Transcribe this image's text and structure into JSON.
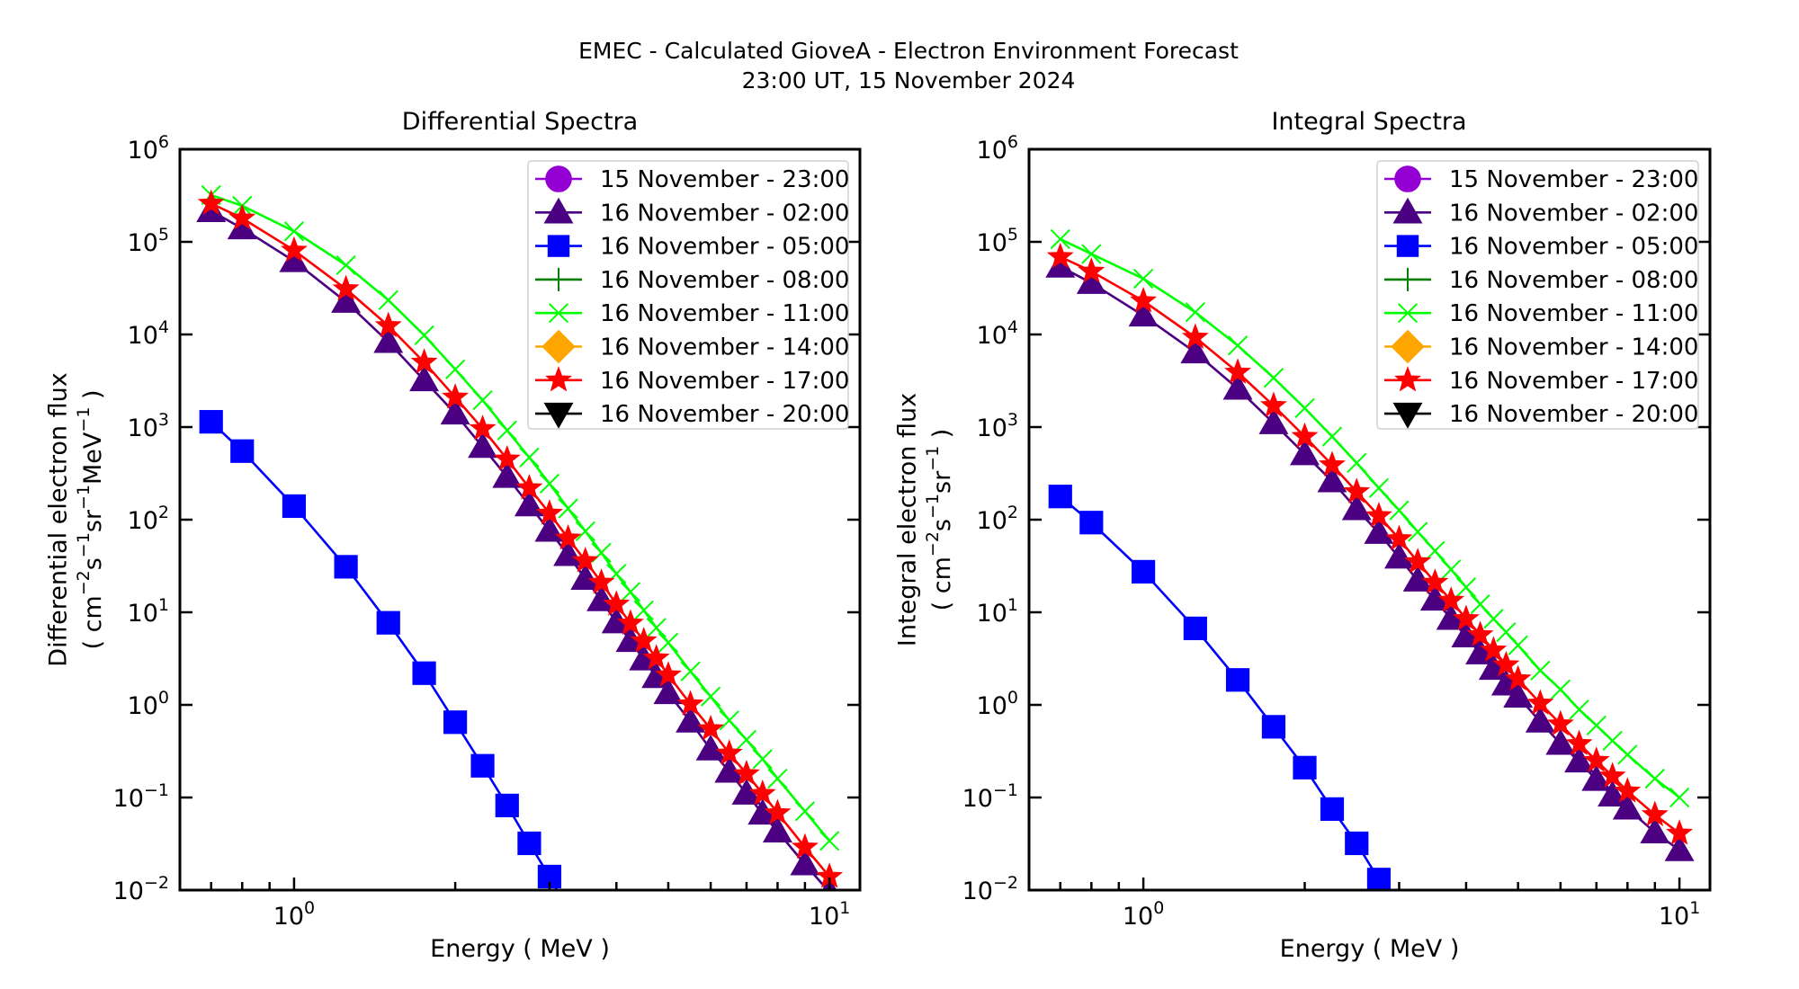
{
  "figure": {
    "title_line1": "EMEC - Calculated GioveA - Electron Environment Forecast",
    "title_line2": "23:00 UT, 15 November 2024"
  },
  "chart_data": [
    {
      "type": "line",
      "title": "Differential Spectra",
      "xlabel": "Energy ( MeV )",
      "ylabel_line1": "Differential electron flux",
      "ylabel_line2_parts": [
        {
          "t": "( cm",
          "sup": false
        },
        {
          "t": "−2",
          "sup": true
        },
        {
          "t": "s",
          "sup": false
        },
        {
          "t": "−1",
          "sup": true
        },
        {
          "t": "sr",
          "sup": false
        },
        {
          "t": "−1",
          "sup": true
        },
        {
          "t": "MeV",
          "sup": false
        },
        {
          "t": "−1",
          "sup": true
        },
        {
          "t": " )",
          "sup": false
        }
      ],
      "xscale": "log",
      "yscale": "log",
      "xlim": [
        0.612,
        11.4
      ],
      "ylim": [
        0.01,
        1000000
      ],
      "xticks": [
        {
          "base": "10",
          "exp": "0",
          "value": 1
        },
        {
          "base": "10",
          "exp": "1",
          "value": 10
        }
      ],
      "yticks": [
        {
          "base": "10",
          "exp": "−2",
          "value": 0.01
        },
        {
          "base": "10",
          "exp": "−1",
          "value": 0.1
        },
        {
          "base": "10",
          "exp": "0",
          "value": 1
        },
        {
          "base": "10",
          "exp": "1",
          "value": 10
        },
        {
          "base": "10",
          "exp": "2",
          "value": 100
        },
        {
          "base": "10",
          "exp": "3",
          "value": 1000
        },
        {
          "base": "10",
          "exp": "4",
          "value": 10000
        },
        {
          "base": "10",
          "exp": "5",
          "value": 100000
        },
        {
          "base": "10",
          "exp": "6",
          "value": 1000000
        }
      ],
      "grid": false,
      "legend_position": "upper-right",
      "x": [
        0.7,
        0.8,
        1.0,
        1.25,
        1.5,
        1.75,
        2.0,
        2.25,
        2.5,
        2.75,
        3.0,
        3.25,
        3.5,
        3.75,
        4.0,
        4.25,
        4.5,
        4.75,
        5.0,
        5.5,
        6.0,
        6.5,
        7.0,
        7.5,
        8.0,
        9.0,
        10.0
      ],
      "series": [
        {
          "name": "15 November - 23:00",
          "color": "#9400D3",
          "marker": "circle",
          "values": null
        },
        {
          "name": "16 November - 02:00",
          "color": "#4B0082",
          "marker": "triangle-up",
          "values": [
            215000,
            140000,
            62000,
            22500,
            8300,
            3200,
            1400,
            610,
            290,
            143,
            76,
            41.5,
            23,
            13.5,
            7.8,
            4.9,
            3.1,
            2.0,
            1.34,
            0.66,
            0.33,
            0.19,
            0.11,
            0.067,
            0.043,
            0.019,
            0.0095
          ]
        },
        {
          "name": "16 November - 05:00",
          "color": "#0000FF",
          "marker": "square",
          "values": [
            1140,
            550,
            140,
            31,
            7.7,
            2.2,
            0.65,
            0.22,
            0.082,
            0.032,
            0.014,
            0.006,
            null,
            null,
            null,
            null,
            null,
            null,
            null,
            null,
            null,
            null,
            null,
            null,
            null,
            null,
            null
          ]
        },
        {
          "name": "16 November - 08:00",
          "color": "#008000",
          "marker": "plus",
          "values": null
        },
        {
          "name": "16 November - 11:00",
          "color": "#00FF00",
          "marker": "x",
          "values": [
            320000,
            245000,
            130000,
            56000,
            23500,
            9800,
            4200,
            1950,
            920,
            470,
            245,
            132,
            75,
            44,
            26,
            16.6,
            10.5,
            6.8,
            4.7,
            2.3,
            1.23,
            0.68,
            0.42,
            0.26,
            0.16,
            0.071,
            0.034
          ]
        },
        {
          "name": "16 November - 14:00",
          "color": "#FFA500",
          "marker": "diamond",
          "values": null
        },
        {
          "name": "16 November - 17:00",
          "color": "#FF0000",
          "marker": "star",
          "values": [
            260000,
            180000,
            81000,
            31000,
            12400,
            5000,
            2100,
            960,
            450,
            220,
            117,
            63,
            36,
            21,
            12.2,
            7.6,
            4.9,
            3.2,
            2.1,
            1.02,
            0.55,
            0.3,
            0.18,
            0.11,
            0.068,
            0.029,
            0.014
          ]
        },
        {
          "name": "16 November - 20:00",
          "color": "#000000",
          "marker": "triangle-down",
          "values": null
        }
      ]
    },
    {
      "type": "line",
      "title": "Integral Spectra",
      "xlabel": "Energy ( MeV )",
      "ylabel_line1": "Integral electron flux",
      "ylabel_line2_parts": [
        {
          "t": "( cm",
          "sup": false
        },
        {
          "t": "−2",
          "sup": true
        },
        {
          "t": "s",
          "sup": false
        },
        {
          "t": "−1",
          "sup": true
        },
        {
          "t": "sr",
          "sup": false
        },
        {
          "t": "−1",
          "sup": true
        },
        {
          "t": " )",
          "sup": false
        }
      ],
      "xscale": "log",
      "yscale": "log",
      "xlim": [
        0.612,
        11.4
      ],
      "ylim": [
        0.01,
        1000000
      ],
      "xticks": [
        {
          "base": "10",
          "exp": "0",
          "value": 1
        },
        {
          "base": "10",
          "exp": "1",
          "value": 10
        }
      ],
      "yticks": [
        {
          "base": "10",
          "exp": "−2",
          "value": 0.01
        },
        {
          "base": "10",
          "exp": "−1",
          "value": 0.1
        },
        {
          "base": "10",
          "exp": "0",
          "value": 1
        },
        {
          "base": "10",
          "exp": "1",
          "value": 10
        },
        {
          "base": "10",
          "exp": "2",
          "value": 100
        },
        {
          "base": "10",
          "exp": "3",
          "value": 1000
        },
        {
          "base": "10",
          "exp": "4",
          "value": 10000
        },
        {
          "base": "10",
          "exp": "5",
          "value": 100000
        },
        {
          "base": "10",
          "exp": "6",
          "value": 1000000
        }
      ],
      "grid": false,
      "legend_position": "upper-right",
      "x": [
        0.7,
        0.8,
        1.0,
        1.25,
        1.5,
        1.75,
        2.0,
        2.25,
        2.5,
        2.75,
        3.0,
        3.25,
        3.5,
        3.75,
        4.0,
        4.25,
        4.5,
        4.75,
        5.0,
        5.5,
        6.0,
        6.5,
        7.0,
        7.5,
        8.0,
        9.0,
        10.0
      ],
      "series": [
        {
          "name": "15 November - 23:00",
          "color": "#9400D3",
          "marker": "circle",
          "values": null
        },
        {
          "name": "16 November - 02:00",
          "color": "#4B0082",
          "marker": "triangle-up",
          "values": [
            54000,
            36000,
            16000,
            6400,
            2600,
            1100,
            510,
            260,
            130,
            72,
            39,
            22,
            13.7,
            8.5,
            5.5,
            3.6,
            2.45,
            1.66,
            1.23,
            0.66,
            0.38,
            0.245,
            0.155,
            0.105,
            0.076,
            0.042,
            0.027
          ]
        },
        {
          "name": "16 November - 05:00",
          "color": "#0000FF",
          "marker": "square",
          "values": [
            178,
            93,
            27.4,
            6.7,
            1.86,
            0.58,
            0.21,
            0.075,
            0.032,
            0.013,
            0.005,
            null,
            null,
            null,
            null,
            null,
            null,
            null,
            null,
            null,
            null,
            null,
            null,
            null,
            null,
            null,
            null
          ]
        },
        {
          "name": "16 November - 08:00",
          "color": "#008000",
          "marker": "plus",
          "values": null
        },
        {
          "name": "16 November - 11:00",
          "color": "#00FF00",
          "marker": "x",
          "values": [
            107000,
            74000,
            40000,
            17400,
            7600,
            3400,
            1600,
            790,
            410,
            220,
            126,
            74,
            46,
            29,
            18.6,
            12.2,
            8.5,
            6.1,
            4.4,
            2.35,
            1.47,
            0.89,
            0.6,
            0.41,
            0.29,
            0.16,
            0.1
          ]
        },
        {
          "name": "16 November - 14:00",
          "color": "#FFA500",
          "marker": "diamond",
          "values": null
        },
        {
          "name": "16 November - 17:00",
          "color": "#FF0000",
          "marker": "star",
          "values": [
            69000,
            48000,
            23000,
            9300,
            3900,
            1700,
            790,
            390,
            200,
            110,
            62,
            35,
            21,
            13.4,
            8.5,
            5.7,
            3.9,
            2.7,
            1.9,
            1.04,
            0.62,
            0.38,
            0.25,
            0.17,
            0.117,
            0.065,
            0.041
          ]
        },
        {
          "name": "16 November - 20:00",
          "color": "#000000",
          "marker": "triangle-down",
          "values": null
        }
      ]
    }
  ]
}
